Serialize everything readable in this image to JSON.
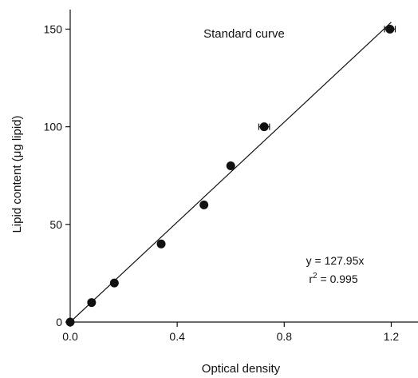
{
  "chart_data": {
    "type": "scatter",
    "title": "Standard curve",
    "xlabel": "Optical density",
    "ylabel": "Lipid content (μg lipid)",
    "xlim": [
      0,
      1.3
    ],
    "ylim": [
      0,
      160
    ],
    "x_ticks": [
      0.0,
      0.4,
      0.8,
      1.2
    ],
    "x_tick_labels": [
      "0.0",
      "0.4",
      "0.8",
      "1.2"
    ],
    "y_ticks": [
      0,
      50,
      100,
      150
    ],
    "y_tick_labels": [
      "0",
      "50",
      "100",
      "150"
    ],
    "points": [
      {
        "x": 0.0,
        "y": 0
      },
      {
        "x": 0.08,
        "y": 10
      },
      {
        "x": 0.165,
        "y": 20
      },
      {
        "x": 0.34,
        "y": 40
      },
      {
        "x": 0.5,
        "y": 60
      },
      {
        "x": 0.6,
        "y": 80
      },
      {
        "x": 0.725,
        "y": 100,
        "xerr": 0.02
      },
      {
        "x": 1.195,
        "y": 150,
        "xerr": 0.02
      }
    ],
    "fit": {
      "slope": 127.95,
      "x_range": [
        0,
        1.2
      ]
    },
    "annotation": {
      "equation_prefix": "y = ",
      "equation_value": "127.95x",
      "r_label": "r",
      "r_exponent": "2",
      "r_value": " = 0.995"
    },
    "grid": false,
    "colors": {
      "marker": "#111111",
      "line": "#111111"
    }
  }
}
